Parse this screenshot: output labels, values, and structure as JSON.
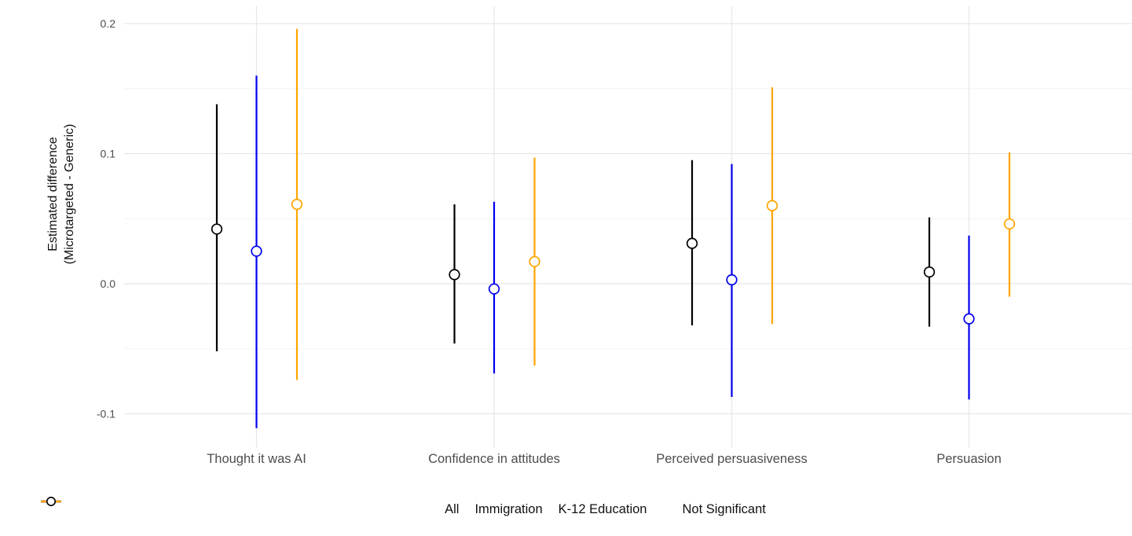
{
  "chart_data": {
    "type": "pointrange",
    "title": "",
    "xlabel": "",
    "ylabel": "Estimated difference\n(Microtargeted - Generic)",
    "categories": [
      "Thought it was AI",
      "Confidence in attitudes",
      "Perceived persuasiveness",
      "Persuasion"
    ],
    "series": [
      {
        "name": "All",
        "color": "#000000",
        "estimates": [
          0.042,
          0.007,
          0.031,
          0.009
        ],
        "ci_lower": [
          -0.052,
          -0.046,
          -0.032,
          -0.033
        ],
        "ci_upper": [
          0.138,
          0.061,
          0.095,
          0.051
        ],
        "significant": [
          false,
          false,
          false,
          false
        ]
      },
      {
        "name": "Immigration",
        "color": "#0000EE",
        "estimates": [
          0.025,
          -0.004,
          0.003,
          -0.027
        ],
        "ci_lower": [
          -0.111,
          -0.069,
          -0.087,
          -0.089
        ],
        "ci_upper": [
          0.16,
          0.063,
          0.092,
          0.037
        ],
        "significant": [
          false,
          false,
          false,
          false
        ]
      },
      {
        "name": "K-12 Education",
        "color": "#FFA500",
        "estimates": [
          0.061,
          0.017,
          0.06,
          0.046
        ],
        "ci_lower": [
          -0.074,
          -0.063,
          -0.031,
          -0.01
        ],
        "ci_upper": [
          0.196,
          0.097,
          0.151,
          0.101
        ],
        "significant": [
          false,
          false,
          false,
          false
        ]
      }
    ],
    "y_ticks": {
      "values": [
        0.2,
        0.1,
        0.0,
        -0.1
      ],
      "labels": [
        "0.2",
        "0.1",
        "0.0",
        "-0.1"
      ]
    },
    "y_minor_gridlines": [
      0.15,
      0.05,
      -0.05
    ],
    "ylim": [
      -0.126,
      0.213
    ],
    "grid": true,
    "legend": {
      "position": "bottom",
      "shape_key_label": "Not Significant"
    },
    "point_style_not_significant": "open-circle",
    "background": "#FFFFFF",
    "axis_text_color": "#4D4D4D"
  }
}
